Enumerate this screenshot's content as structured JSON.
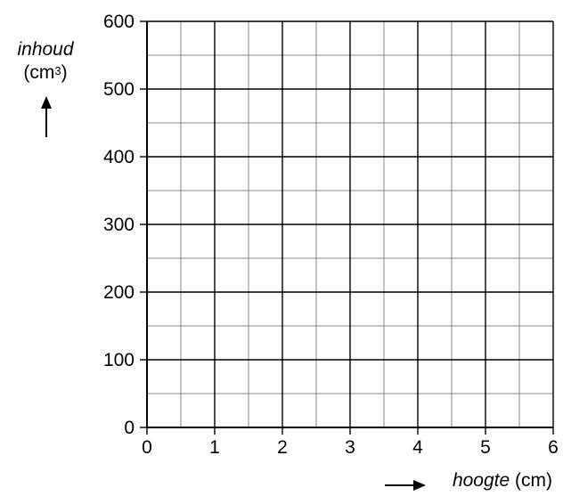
{
  "chart_data": {
    "type": "line",
    "title": "",
    "xlabel": "hoogte",
    "xunit": "(cm)",
    "ylabel": "inhoud",
    "yunit": "(cm",
    "yunit_power": "3",
    "yunit_close": ")",
    "xlim": [
      0,
      6
    ],
    "ylim": [
      0,
      600
    ],
    "x_major_ticks": [
      "0",
      "1",
      "2",
      "3",
      "4",
      "5",
      "6"
    ],
    "y_major_ticks": [
      "0",
      "100",
      "200",
      "300",
      "400",
      "500",
      "600"
    ],
    "x_minor_step": 0.5,
    "y_minor_step": 50,
    "grid": true,
    "series": []
  }
}
